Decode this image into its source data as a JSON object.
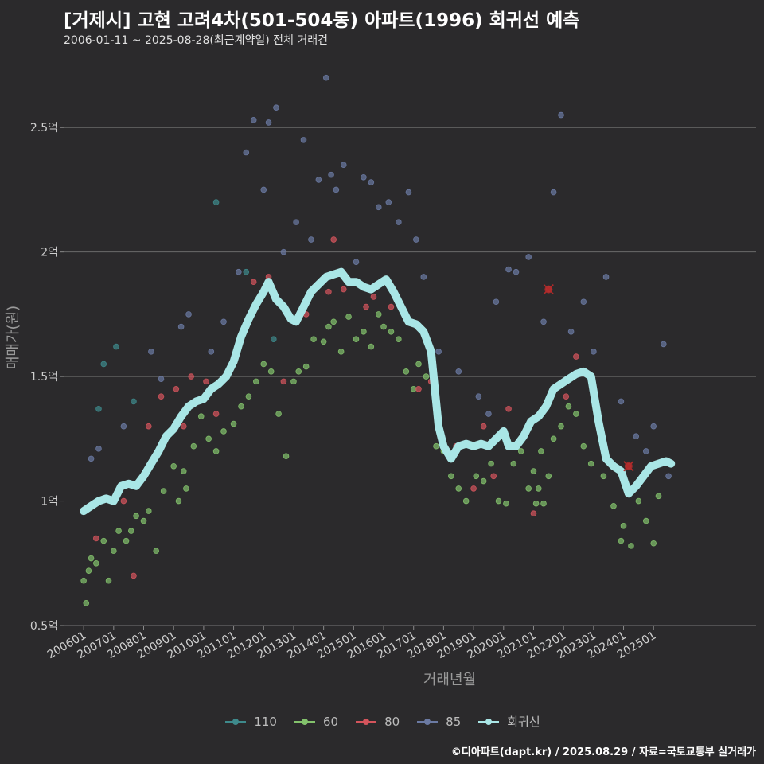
{
  "chart_data": {
    "type": "scatter",
    "title": "[거제시] 고현 고려4차(501-504동) 아파트(1996) 회귀선 예측",
    "subtitle": "2006-01-11 ~ 2025-08-28(최근계약일) 전체 거래건",
    "xlabel": "거래년월",
    "ylabel": "매매가(원)",
    "x_tick_labels": [
      "200601",
      "200701",
      "200801",
      "200901",
      "201001",
      "201101",
      "201201",
      "201301",
      "201401",
      "201501",
      "201601",
      "201701",
      "201801",
      "201901",
      "202001",
      "202101",
      "202201",
      "202301",
      "202401",
      "202501"
    ],
    "x_tick_dates": [
      "2006-01",
      "2007-01",
      "2008-01",
      "2009-01",
      "2010-01",
      "2011-01",
      "2012-01",
      "2013-01",
      "2014-01",
      "2015-01",
      "2016-01",
      "2017-01",
      "2018-01",
      "2019-01",
      "2020-01",
      "2021-01",
      "2022-01",
      "2023-01",
      "2024-01",
      "2025-01"
    ],
    "xlim": [
      "2005-05",
      "2028-06"
    ],
    "y_ticks": [
      0.5,
      1,
      1.5,
      2,
      2.5
    ],
    "y_tick_labels": [
      "0.5억",
      "1억",
      "1.5억",
      "2억",
      "2.5억"
    ],
    "ylim": [
      0.5,
      2.75
    ],
    "y_unit": "억",
    "grid": "horizontal",
    "legend_position": "bottom",
    "series": [
      {
        "name": "110",
        "color": "#3e8a8c",
        "points": [
          [
            "2006-07",
            1.37
          ],
          [
            "2006-09",
            1.55
          ],
          [
            "2007-02",
            1.62
          ],
          [
            "2007-09",
            1.4
          ],
          [
            "2010-06",
            2.2
          ],
          [
            "2011-06",
            1.92
          ],
          [
            "2012-05",
            1.65
          ]
        ]
      },
      {
        "name": "60",
        "color": "#83c26c",
        "points": [
          [
            "2006-01",
            0.68
          ],
          [
            "2006-02",
            0.59
          ],
          [
            "2006-03",
            0.72
          ],
          [
            "2006-04",
            0.77
          ],
          [
            "2006-06",
            0.75
          ],
          [
            "2006-09",
            0.84
          ],
          [
            "2006-11",
            0.68
          ],
          [
            "2007-01",
            0.8
          ],
          [
            "2007-03",
            0.88
          ],
          [
            "2007-06",
            0.84
          ],
          [
            "2007-08",
            0.88
          ],
          [
            "2007-10",
            0.94
          ],
          [
            "2008-01",
            0.92
          ],
          [
            "2008-03",
            0.96
          ],
          [
            "2008-06",
            0.8
          ],
          [
            "2008-09",
            1.04
          ],
          [
            "2009-01",
            1.14
          ],
          [
            "2009-03",
            1.0
          ],
          [
            "2009-05",
            1.12
          ],
          [
            "2009-06",
            1.05
          ],
          [
            "2009-09",
            1.22
          ],
          [
            "2009-12",
            1.34
          ],
          [
            "2010-03",
            1.25
          ],
          [
            "2010-06",
            1.2
          ],
          [
            "2010-09",
            1.28
          ],
          [
            "2011-01",
            1.31
          ],
          [
            "2011-04",
            1.38
          ],
          [
            "2011-07",
            1.42
          ],
          [
            "2011-10",
            1.48
          ],
          [
            "2012-01",
            1.55
          ],
          [
            "2012-04",
            1.52
          ],
          [
            "2012-07",
            1.35
          ],
          [
            "2012-10",
            1.18
          ],
          [
            "2013-01",
            1.48
          ],
          [
            "2013-03",
            1.52
          ],
          [
            "2013-06",
            1.54
          ],
          [
            "2013-09",
            1.65
          ],
          [
            "2014-01",
            1.64
          ],
          [
            "2014-03",
            1.7
          ],
          [
            "2014-05",
            1.72
          ],
          [
            "2014-08",
            1.6
          ],
          [
            "2014-11",
            1.74
          ],
          [
            "2015-02",
            1.65
          ],
          [
            "2015-05",
            1.68
          ],
          [
            "2015-08",
            1.62
          ],
          [
            "2015-11",
            1.75
          ],
          [
            "2016-01",
            1.7
          ],
          [
            "2016-04",
            1.68
          ],
          [
            "2016-07",
            1.65
          ],
          [
            "2016-10",
            1.52
          ],
          [
            "2017-01",
            1.45
          ],
          [
            "2017-03",
            1.55
          ],
          [
            "2017-06",
            1.5
          ],
          [
            "2017-10",
            1.22
          ],
          [
            "2018-01",
            1.2
          ],
          [
            "2018-04",
            1.1
          ],
          [
            "2018-07",
            1.05
          ],
          [
            "2018-10",
            1.0
          ],
          [
            "2019-02",
            1.1
          ],
          [
            "2019-05",
            1.08
          ],
          [
            "2019-08",
            1.15
          ],
          [
            "2019-11",
            1.0
          ],
          [
            "2020-02",
            0.99
          ],
          [
            "2020-05",
            1.15
          ],
          [
            "2020-08",
            1.2
          ],
          [
            "2020-11",
            1.05
          ],
          [
            "2021-01",
            1.12
          ],
          [
            "2021-02",
            0.99
          ],
          [
            "2021-03",
            1.05
          ],
          [
            "2021-04",
            1.2
          ],
          [
            "2021-05",
            0.99
          ],
          [
            "2021-07",
            1.1
          ],
          [
            "2021-09",
            1.25
          ],
          [
            "2021-12",
            1.3
          ],
          [
            "2022-03",
            1.38
          ],
          [
            "2022-06",
            1.35
          ],
          [
            "2022-09",
            1.22
          ],
          [
            "2022-12",
            1.15
          ],
          [
            "2023-05",
            1.1
          ],
          [
            "2023-09",
            0.98
          ],
          [
            "2023-12",
            0.84
          ],
          [
            "2024-01",
            0.9
          ],
          [
            "2024-04",
            0.82
          ],
          [
            "2024-07",
            1.0
          ],
          [
            "2024-10",
            0.92
          ],
          [
            "2025-01",
            0.83
          ],
          [
            "2025-03",
            1.02
          ]
        ]
      },
      {
        "name": "80",
        "color": "#d4545c",
        "points": [
          [
            "2006-06",
            0.85
          ],
          [
            "2007-05",
            1.0
          ],
          [
            "2007-09",
            0.7
          ],
          [
            "2008-03",
            1.3
          ],
          [
            "2008-08",
            1.42
          ],
          [
            "2009-02",
            1.45
          ],
          [
            "2009-05",
            1.3
          ],
          [
            "2009-08",
            1.5
          ],
          [
            "2010-02",
            1.48
          ],
          [
            "2010-06",
            1.35
          ],
          [
            "2011-02",
            1.6
          ],
          [
            "2011-09",
            1.88
          ],
          [
            "2012-03",
            1.9
          ],
          [
            "2012-09",
            1.48
          ],
          [
            "2013-06",
            1.75
          ],
          [
            "2014-03",
            1.84
          ],
          [
            "2014-05",
            2.05
          ],
          [
            "2014-09",
            1.85
          ],
          [
            "2015-06",
            1.78
          ],
          [
            "2015-09",
            1.82
          ],
          [
            "2016-04",
            1.78
          ],
          [
            "2017-03",
            1.45
          ],
          [
            "2017-08",
            1.48
          ],
          [
            "2018-06",
            1.22
          ],
          [
            "2019-01",
            1.05
          ],
          [
            "2019-05",
            1.3
          ],
          [
            "2019-09",
            1.1
          ],
          [
            "2020-03",
            1.37
          ],
          [
            "2021-01",
            0.95
          ],
          [
            "2021-07",
            1.85
          ],
          [
            "2022-02",
            1.42
          ],
          [
            "2022-06",
            1.58
          ],
          [
            "2024-03",
            1.14
          ]
        ]
      },
      {
        "name": "85",
        "color": "#6b7aa3",
        "points": [
          [
            "2006-04",
            1.17
          ],
          [
            "2006-07",
            1.21
          ],
          [
            "2007-05",
            1.3
          ],
          [
            "2008-04",
            1.6
          ],
          [
            "2008-08",
            1.49
          ],
          [
            "2009-04",
            1.7
          ],
          [
            "2009-07",
            1.75
          ],
          [
            "2010-04",
            1.6
          ],
          [
            "2010-09",
            1.72
          ],
          [
            "2011-03",
            1.92
          ],
          [
            "2011-06",
            2.4
          ],
          [
            "2011-09",
            2.53
          ],
          [
            "2012-01",
            2.25
          ],
          [
            "2012-03",
            2.52
          ],
          [
            "2012-06",
            2.58
          ],
          [
            "2012-09",
            2.0
          ],
          [
            "2013-02",
            2.12
          ],
          [
            "2013-05",
            2.45
          ],
          [
            "2013-08",
            2.05
          ],
          [
            "2013-11",
            2.29
          ],
          [
            "2014-02",
            2.7
          ],
          [
            "2014-04",
            2.31
          ],
          [
            "2014-06",
            2.25
          ],
          [
            "2014-09",
            2.35
          ],
          [
            "2015-02",
            1.96
          ],
          [
            "2015-05",
            2.3
          ],
          [
            "2015-08",
            2.28
          ],
          [
            "2015-11",
            2.18
          ],
          [
            "2016-03",
            2.2
          ],
          [
            "2016-07",
            2.12
          ],
          [
            "2016-11",
            2.24
          ],
          [
            "2017-02",
            2.05
          ],
          [
            "2017-05",
            1.9
          ],
          [
            "2017-11",
            1.6
          ],
          [
            "2018-07",
            1.52
          ],
          [
            "2019-03",
            1.42
          ],
          [
            "2019-07",
            1.35
          ],
          [
            "2019-10",
            1.8
          ],
          [
            "2020-03",
            1.93
          ],
          [
            "2020-06",
            1.92
          ],
          [
            "2020-11",
            1.98
          ],
          [
            "2021-05",
            1.72
          ],
          [
            "2021-09",
            2.24
          ],
          [
            "2021-12",
            2.55
          ],
          [
            "2022-04",
            1.68
          ],
          [
            "2022-09",
            1.8
          ],
          [
            "2023-01",
            1.6
          ],
          [
            "2023-06",
            1.9
          ],
          [
            "2023-12",
            1.4
          ],
          [
            "2024-06",
            1.26
          ],
          [
            "2024-10",
            1.2
          ],
          [
            "2025-01",
            1.3
          ],
          [
            "2025-05",
            1.63
          ],
          [
            "2025-07",
            1.1
          ]
        ]
      }
    ],
    "trend": {
      "name": "회귀선",
      "color": "#a9e6e6",
      "points": [
        [
          "2006-01",
          0.96
        ],
        [
          "2006-04",
          0.98
        ],
        [
          "2006-07",
          1.0
        ],
        [
          "2006-10",
          1.01
        ],
        [
          "2007-01",
          1.0
        ],
        [
          "2007-04",
          1.06
        ],
        [
          "2007-07",
          1.07
        ],
        [
          "2007-10",
          1.06
        ],
        [
          "2008-01",
          1.1
        ],
        [
          "2008-04",
          1.15
        ],
        [
          "2008-07",
          1.2
        ],
        [
          "2008-10",
          1.26
        ],
        [
          "2009-01",
          1.29
        ],
        [
          "2009-04",
          1.34
        ],
        [
          "2009-07",
          1.38
        ],
        [
          "2009-10",
          1.4
        ],
        [
          "2010-01",
          1.41
        ],
        [
          "2010-04",
          1.45
        ],
        [
          "2010-07",
          1.47
        ],
        [
          "2010-10",
          1.5
        ],
        [
          "2011-01",
          1.56
        ],
        [
          "2011-04",
          1.66
        ],
        [
          "2011-07",
          1.73
        ],
        [
          "2011-10",
          1.79
        ],
        [
          "2012-01",
          1.84
        ],
        [
          "2012-03",
          1.88
        ],
        [
          "2012-06",
          1.81
        ],
        [
          "2012-09",
          1.78
        ],
        [
          "2012-12",
          1.73
        ],
        [
          "2013-02",
          1.72
        ],
        [
          "2013-05",
          1.78
        ],
        [
          "2013-08",
          1.84
        ],
        [
          "2013-11",
          1.87
        ],
        [
          "2014-02",
          1.9
        ],
        [
          "2014-05",
          1.91
        ],
        [
          "2014-08",
          1.92
        ],
        [
          "2014-11",
          1.88
        ],
        [
          "2015-02",
          1.88
        ],
        [
          "2015-05",
          1.86
        ],
        [
          "2015-08",
          1.85
        ],
        [
          "2015-11",
          1.87
        ],
        [
          "2016-02",
          1.89
        ],
        [
          "2016-05",
          1.84
        ],
        [
          "2016-08",
          1.78
        ],
        [
          "2016-11",
          1.72
        ],
        [
          "2017-02",
          1.71
        ],
        [
          "2017-05",
          1.68
        ],
        [
          "2017-08",
          1.6
        ],
        [
          "2017-11",
          1.3
        ],
        [
          "2018-01",
          1.22
        ],
        [
          "2018-04",
          1.17
        ],
        [
          "2018-07",
          1.22
        ],
        [
          "2018-10",
          1.23
        ],
        [
          "2019-01",
          1.22
        ],
        [
          "2019-04",
          1.23
        ],
        [
          "2019-07",
          1.22
        ],
        [
          "2019-10",
          1.25
        ],
        [
          "2020-01",
          1.28
        ],
        [
          "2020-03",
          1.22
        ],
        [
          "2020-06",
          1.22
        ],
        [
          "2020-09",
          1.26
        ],
        [
          "2020-12",
          1.32
        ],
        [
          "2021-03",
          1.34
        ],
        [
          "2021-06",
          1.38
        ],
        [
          "2021-09",
          1.45
        ],
        [
          "2021-12",
          1.47
        ],
        [
          "2022-03",
          1.49
        ],
        [
          "2022-06",
          1.51
        ],
        [
          "2022-09",
          1.52
        ],
        [
          "2022-12",
          1.5
        ],
        [
          "2023-03",
          1.32
        ],
        [
          "2023-06",
          1.17
        ],
        [
          "2023-09",
          1.14
        ],
        [
          "2023-12",
          1.12
        ],
        [
          "2024-03",
          1.03
        ],
        [
          "2024-06",
          1.06
        ],
        [
          "2024-09",
          1.1
        ],
        [
          "2024-12",
          1.14
        ],
        [
          "2025-03",
          1.15
        ],
        [
          "2025-06",
          1.16
        ],
        [
          "2025-08",
          1.15
        ]
      ]
    },
    "highlighted_points": [
      [
        "2021-07",
        1.85
      ],
      [
        "2024-03",
        1.14
      ]
    ],
    "highlight_color": "#b02a2a",
    "legend": [
      "110",
      "60",
      "80",
      "85",
      "회귀선"
    ]
  },
  "caption": "©디아파트(dapt.kr) / 2025.08.29 / 자료=국토교통부 실거래가"
}
